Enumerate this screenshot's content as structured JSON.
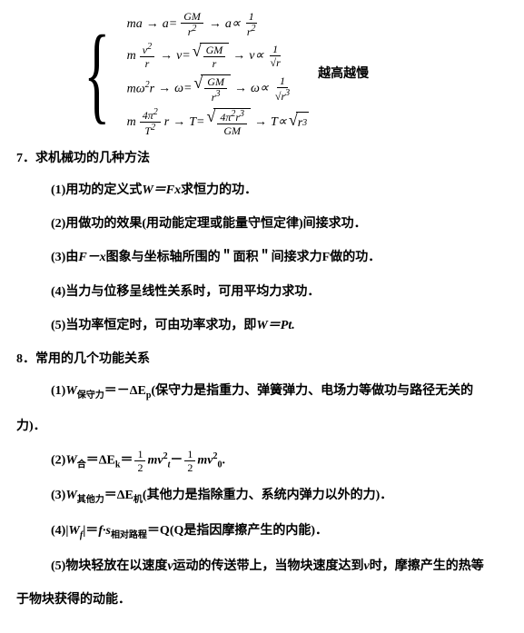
{
  "equations": {
    "annotation": "越高越慢",
    "brace": "{",
    "lines": [
      {
        "parts": [
          "ma",
          "→",
          "a=",
          "FRAC:GM:r²",
          "→",
          "a∝",
          "FRAC:1:r²"
        ]
      },
      {
        "parts": [
          "m",
          "FRAC:v²:r",
          "→",
          "v=",
          "SQRT:FRAC:GM:r",
          "→",
          "v∝",
          "FRAC:1:√r"
        ]
      },
      {
        "parts": [
          "mω²r",
          "→",
          "ω=",
          "SQRT:FRAC:GM:r³",
          "→",
          "ω∝",
          "FRAC:1:√r³"
        ]
      },
      {
        "parts": [
          "m",
          "FRAC:4π²:T²",
          "r",
          "→",
          "T=",
          "SQRT:FRAC:4π²r³:GM",
          "→",
          "T∝",
          "SQRT:r³"
        ]
      }
    ]
  },
  "section7": {
    "title": "7．求机械功的几种方法",
    "items": [
      {
        "pre": "(1)用功的定义式",
        "mid": "W＝Fx",
        "post": "求恒力的功．"
      },
      {
        "pre": "(2)用做功的效果(用动能定理或能量守恒定律)间接求功．",
        "mid": "",
        "post": ""
      },
      {
        "pre": "(3)由",
        "mid": "F－x",
        "post": "图象与坐标轴所围的＂面积＂间接求力F做的功．"
      },
      {
        "pre": "(4)当力与位移呈线性关系时，可用平均力求功．",
        "mid": "",
        "post": ""
      },
      {
        "pre": "(5)当功率恒定时，可由功率求功，即",
        "mid": "W＝Pt.",
        "post": ""
      }
    ]
  },
  "section8": {
    "title": "8．常用的几个功能关系",
    "item1": {
      "pre": "(1)",
      "mid": "W",
      "sub": "保守力",
      "post1": "＝－ΔE",
      "sub2": "p",
      "post2": "(保守力是指重力、弹簧弹力、电场力等做功与路径无关的"
    },
    "item1b": "力)．",
    "item2": {
      "pre": "(2)",
      "mid": "W",
      "sub": "合",
      "eq": "＝ΔE",
      "sub2": "k",
      "eq2": "＝",
      "frac1n": "1",
      "frac1d": "2",
      "v1": "mv",
      "v1s": "2",
      "v1sub": "t",
      "minus": "－",
      "frac2n": "1",
      "frac2d": "2",
      "v2": "mv",
      "v2s": "2",
      "v2sub": "0",
      "dot": "."
    },
    "item3": {
      "pre": "(3)",
      "mid": "W",
      "sub": "其他力",
      "eq": "＝ΔE",
      "sub2": "机",
      "post": "(其他力是指除重力、系统内弹力以外的力)．"
    },
    "item4": {
      "pre": "(4)|",
      "mid": "W",
      "sub": "f",
      "bar": "|＝",
      "f": "f·s",
      "sub2": "相对路程",
      "eq": "＝Q(Q",
      "post": "是指因摩擦产生的内能)．"
    },
    "item5": {
      "pre": "(5)物块轻放在以速度",
      "v": "v",
      "post1": "运动的传送带上，当物块速度达到",
      "v2": "v",
      "post2": "时，摩擦产生的热等"
    },
    "item5b": "于物块获得的动能．"
  }
}
